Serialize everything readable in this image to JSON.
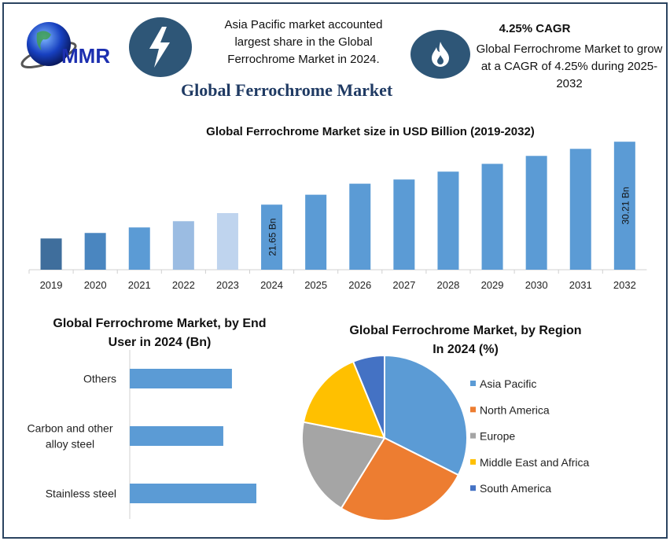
{
  "header": {
    "logo_text": "MMR",
    "highlight_left": "Asia Pacific market accounted largest share in the Global Ferrochrome Market in 2024.",
    "cagr_title": "4.25% CAGR",
    "cagr_text": "Global Ferrochrome Market to grow at a CAGR of 4.25% during 2025-2032",
    "main_title": "Global Ferrochrome Market",
    "icons": [
      "lightning-icon",
      "flame-icon",
      "globe-logo"
    ]
  },
  "chart_data": [
    {
      "type": "bar",
      "title": "Global Ferrochrome Market size in USD Billion (2019-2032)",
      "categories": [
        "2019",
        "2020",
        "2021",
        "2022",
        "2023",
        "2024",
        "2025",
        "2026",
        "2027",
        "2028",
        "2029",
        "2030",
        "2031",
        "2032"
      ],
      "values": [
        17.05,
        17.8,
        18.55,
        19.4,
        20.5,
        21.65,
        23.0,
        24.5,
        25.07,
        26.14,
        27.2,
        28.28,
        29.24,
        30.21
      ],
      "data_labels": {
        "2024": "21.65 Bn",
        "2032": "30.21 Bn"
      },
      "ylim": [
        12.8,
        31
      ],
      "colors": [
        "#3f6e9c",
        "#4a86c0",
        "#5b9bd5",
        "#9bbce2",
        "#bfd4ee",
        "#5b9bd5",
        "#5b9bd5",
        "#5b9bd5",
        "#5b9bd5",
        "#5b9bd5",
        "#5b9bd5",
        "#5b9bd5",
        "#5b9bd5",
        "#5b9bd5"
      ],
      "grid": false
    },
    {
      "type": "bar",
      "orientation": "horizontal",
      "title": "Global Ferrochrome Market, by End User in 2024 (Bn)",
      "categories": [
        "Others",
        "Carbon and other alloy steel",
        "Stainless steel"
      ],
      "category_lines": [
        [
          "Others"
        ],
        [
          "Carbon and other",
          "alloy steel"
        ],
        [
          "Stainless steel"
        ]
      ],
      "values": [
        6.86,
        6.28,
        8.5
      ],
      "color": "#5b9bd5",
      "grid": false
    },
    {
      "type": "pie",
      "title": "Global Ferrochrome Market, by Region In 2024 (%)",
      "title_lines": [
        "Global Ferrochrome Market, by Region",
        "In 2024 (%)"
      ],
      "labels": [
        "Asia Pacific",
        "North America",
        "Europe",
        "Middle East and Africa",
        "South America"
      ],
      "values": [
        32.4,
        26.4,
        19.3,
        15.7,
        6.2
      ],
      "colors": [
        "#5b9bd5",
        "#ed7d31",
        "#a5a5a5",
        "#ffc000",
        "#4472c4"
      ],
      "legend": "right"
    }
  ]
}
